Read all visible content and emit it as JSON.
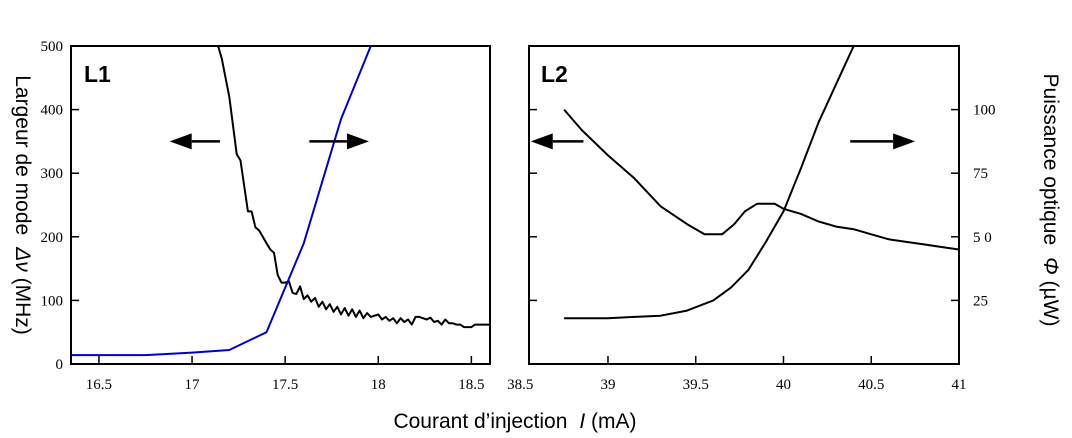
{
  "chart_data": [
    {
      "type": "line",
      "label": "L1",
      "xlabel": "Courant d’injection",
      "xlabel_symbol": "I",
      "xlabel_unit": " (mA)",
      "ylabel": "Largeur de mode",
      "ylabel_symbol": "Δν",
      "ylabel_unit": " (MHz)",
      "xlim": [
        16.35,
        18.6
      ],
      "ylim": [
        0,
        500
      ],
      "x_ticks": [
        16.5,
        17,
        17.5,
        18,
        18.5
      ],
      "x_tick_labels": [
        "16.5",
        "17",
        "17.5",
        "18",
        "18.5"
      ],
      "y_ticks": [
        0,
        100,
        200,
        300,
        400,
        500
      ],
      "y_tick_labels": [
        "0",
        "100",
        "200",
        "300",
        "400",
        "500"
      ],
      "series": [
        {
          "role": "linewidth (left axis)",
          "color": "#000000",
          "x": [
            17.14,
            17.16,
            17.2,
            17.24,
            17.26,
            17.28,
            17.3,
            17.32,
            17.34,
            17.36,
            17.38,
            17.4,
            17.42,
            17.44,
            17.46,
            17.48,
            17.5,
            17.52,
            17.54,
            17.56,
            17.58,
            17.6,
            17.62,
            17.64,
            17.66,
            17.68,
            17.7,
            17.72,
            17.74,
            17.76,
            17.78,
            17.8,
            17.82,
            17.84,
            17.86,
            17.88,
            17.9,
            17.92,
            17.94,
            17.96,
            17.98,
            18.0,
            18.02,
            18.04,
            18.06,
            18.08,
            18.1,
            18.12,
            18.14,
            18.16,
            18.18,
            18.2,
            18.22,
            18.24,
            18.26,
            18.28,
            18.3,
            18.32,
            18.34,
            18.36,
            18.38,
            18.4,
            18.42,
            18.44,
            18.46,
            18.48,
            18.5,
            18.52,
            18.54,
            18.56,
            18.58,
            18.6
          ],
          "y": [
            500,
            480,
            420,
            330,
            320,
            280,
            240,
            240,
            215,
            210,
            200,
            190,
            180,
            175,
            140,
            128,
            128,
            130,
            112,
            110,
            122,
            102,
            108,
            98,
            104,
            90,
            98,
            86,
            94,
            82,
            90,
            78,
            88,
            76,
            86,
            74,
            84,
            72,
            80,
            74,
            76,
            78,
            70,
            74,
            68,
            72,
            64,
            72,
            66,
            70,
            62,
            74,
            74,
            72,
            70,
            73,
            66,
            68,
            62,
            70,
            64,
            64,
            62,
            62,
            58,
            58,
            58,
            62,
            62,
            62,
            62,
            62
          ]
        },
        {
          "role": "optical power (right axis)",
          "color": "#0000cc",
          "x": [
            16.35,
            16.75,
            17.0,
            17.2,
            17.4,
            17.6,
            17.8,
            17.96
          ],
          "y": [
            14,
            14,
            18,
            22,
            50,
            190,
            385,
            500
          ]
        }
      ],
      "arrows": [
        {
          "direction": "left",
          "x_from": 17.15,
          "x_to": 16.88,
          "y": 350
        },
        {
          "direction": "right",
          "x_from": 17.63,
          "x_to": 17.95,
          "y": 350
        }
      ]
    },
    {
      "type": "line",
      "label": "L2",
      "ylabel_right": "Puissance optique",
      "ylabel_right_symbol": "Φ",
      "ylabel_right_unit": " (µW)",
      "xlim": [
        38.55,
        41.0
      ],
      "ylim": [
        0,
        125
      ],
      "x_ticks": [
        38.5,
        39,
        39.5,
        40,
        40.5,
        41
      ],
      "x_tick_labels": [
        "38.5",
        "39",
        "39.5",
        "40",
        "40.5",
        "41"
      ],
      "y_ticks": [
        25,
        50,
        75,
        100
      ],
      "y_tick_labels": [
        "25",
        "5 0",
        "75",
        "100"
      ],
      "series": [
        {
          "role": "linewidth (left axis)",
          "color": "#000000",
          "x": [
            38.75,
            38.85,
            39.0,
            39.15,
            39.3,
            39.45,
            39.55,
            39.65,
            39.72,
            39.78,
            39.85,
            39.95,
            40.0,
            40.1,
            40.2,
            40.3,
            40.4,
            40.5,
            40.6,
            40.7,
            40.8,
            40.9,
            41.0
          ],
          "y": [
            100,
            92,
            82,
            73,
            62,
            55,
            51,
            51,
            55,
            60,
            63,
            63,
            61,
            59,
            56,
            54,
            53,
            51,
            49,
            48,
            47,
            46,
            45
          ]
        },
        {
          "role": "optical power (right axis)",
          "color": "#000000",
          "x": [
            38.75,
            39.0,
            39.15,
            39.3,
            39.45,
            39.6,
            39.7,
            39.8,
            39.9,
            40.0,
            40.1,
            40.2,
            40.3,
            40.4,
            40.45
          ],
          "y": [
            18,
            18,
            18.5,
            19,
            21,
            25,
            30,
            37,
            48,
            60,
            77,
            95,
            110,
            125,
            130
          ]
        }
      ],
      "arrows": [
        {
          "direction": "left",
          "x_from": 38.86,
          "x_to": 38.56,
          "y": 87.5
        },
        {
          "direction": "right",
          "x_from": 40.38,
          "x_to": 40.75,
          "y": 87.5
        }
      ]
    }
  ]
}
